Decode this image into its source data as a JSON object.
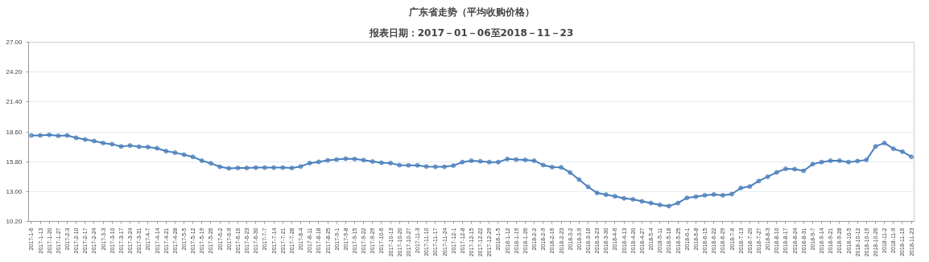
{
  "chart_data": {
    "type": "line",
    "title": "广东省走势（平均收购价格）",
    "subtitle": "报表日期：2017－01－06至2018－11－23",
    "categories": [
      "2017-1-6",
      "2017-1-13",
      "2017-1-20",
      "2017-1-27",
      "2017-2-3",
      "2017-2-10",
      "2017-2-17",
      "2017-2-24",
      "2017-3-3",
      "2017-3-10",
      "2017-3-17",
      "2017-3-24",
      "2017-3-31",
      "2017-4-7",
      "2017-4-14",
      "2017-4-21",
      "2017-4-28",
      "2017-5-5",
      "2017-5-12",
      "2017-5-19",
      "2017-5-26",
      "2017-6-2",
      "2017-6-9",
      "2017-6-16",
      "2017-6-23",
      "2017-6-30",
      "2017-7-7",
      "2017-7-14",
      "2017-7-21",
      "2017-7-28",
      "2017-8-4",
      "2017-8-11",
      "2017-8-18",
      "2017-8-25",
      "2017-9-1",
      "2017-9-8",
      "2017-9-15",
      "2017-9-22",
      "2017-9-29",
      "2017-10-6",
      "2017-10-13",
      "2017-10-20",
      "2017-10-27",
      "2017-11-3",
      "2017-11-10",
      "2017-11-17",
      "2017-11-24",
      "2017-12-1",
      "2017-12-8",
      "2017-12-15",
      "2017-12-22",
      "2017-12-29",
      "2018-1-5",
      "2018-1-12",
      "2018-1-19",
      "2018-1-26",
      "2018-2-2",
      "2018-2-9",
      "2018-2-16",
      "2018-2-23",
      "2018-3-2",
      "2018-3-9",
      "2018-3-16",
      "2018-3-23",
      "2018-3-30",
      "2018-4-6",
      "2018-4-13",
      "2018-4-20",
      "2018-4-27",
      "2018-5-4",
      "2018-5-11",
      "2018-5-18",
      "2018-5-25",
      "2018-6-1",
      "2018-6-8",
      "2018-6-15",
      "2018-6-22",
      "2018-6-29",
      "2018-7-6",
      "2018-7-13",
      "2018-7-20",
      "2018-7-27",
      "2018-8-3",
      "2018-8-10",
      "2018-8-17",
      "2018-8-24",
      "2018-8-31",
      "2018-9-7",
      "2018-9-14",
      "2018-9-21",
      "2018-9-28",
      "2018-10-5",
      "2018-10-12",
      "2018-10-19",
      "2018-10-26",
      "2018-11-2",
      "2018-11-9",
      "2018-11-16",
      "2018-11-23"
    ],
    "series": [
      {
        "color": "#4a7ebb",
        "values": [
          18.26,
          18.26,
          18.31,
          18.23,
          18.26,
          18.04,
          17.88,
          17.74,
          17.55,
          17.44,
          17.23,
          17.31,
          17.2,
          17.17,
          17.06,
          16.79,
          16.65,
          16.46,
          16.25,
          15.89,
          15.65,
          15.32,
          15.18,
          15.21,
          15.21,
          15.24,
          15.24,
          15.24,
          15.24,
          15.21,
          15.35,
          15.67,
          15.78,
          15.92,
          16.0,
          16.08,
          16.05,
          15.95,
          15.81,
          15.7,
          15.67,
          15.48,
          15.46,
          15.46,
          15.35,
          15.32,
          15.32,
          15.43,
          15.76,
          15.89,
          15.84,
          15.76,
          15.76,
          16.05,
          16.0,
          15.97,
          15.89,
          15.48,
          15.29,
          15.27,
          14.78,
          14.12,
          13.44,
          12.87,
          12.71,
          12.56,
          12.37,
          12.27,
          12.08,
          11.92,
          11.75,
          11.64,
          11.92,
          12.41,
          12.52,
          12.65,
          12.73,
          12.65,
          12.76,
          13.33,
          13.47,
          13.99,
          14.39,
          14.8,
          15.13,
          15.1,
          14.94,
          15.57,
          15.76,
          15.89,
          15.89,
          15.76,
          15.86,
          15.97,
          17.23,
          17.55,
          17.01,
          16.74,
          16.25
        ]
      }
    ],
    "ylim": [
      10.2,
      27.0
    ],
    "yticks": [
      {
        "value": 10.2,
        "label": "10.20"
      },
      {
        "value": 13.0,
        "label": "13.00"
      },
      {
        "value": 15.8,
        "label": "15.80"
      },
      {
        "value": 18.6,
        "label": "18.60"
      },
      {
        "value": 21.4,
        "label": "21.40"
      },
      {
        "value": 24.2,
        "label": "24.20"
      },
      {
        "value": 27.0,
        "label": "27.00"
      }
    ],
    "grid": "y",
    "marker": "circle",
    "line_style": "solid"
  }
}
